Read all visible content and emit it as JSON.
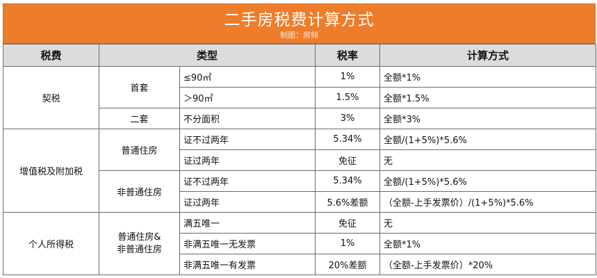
{
  "header": {
    "title": "二手房税费计算方式",
    "subtitle": "制图：房频"
  },
  "table": {
    "columns": [
      "税费",
      "类型",
      "税率",
      "计算方式"
    ],
    "groups": [
      {
        "tax": "契税",
        "subgroups": [
          {
            "type": "首套",
            "rows": [
              {
                "condition": "≤90㎡",
                "rate": "1%",
                "formula": "全额*1%"
              },
              {
                "condition": "＞90㎡",
                "rate": "1.5%",
                "formula": "全额*1.5%"
              }
            ]
          },
          {
            "type": "二套",
            "rows": [
              {
                "condition": "不分面积",
                "rate": "3%",
                "formula": "全额*3%"
              }
            ]
          }
        ]
      },
      {
        "tax": "增值税及附加税",
        "subgroups": [
          {
            "type": "普通住房",
            "rows": [
              {
                "condition": "证不过两年",
                "rate": "5.34%",
                "formula": "全额/(1+5%)*5.6%"
              },
              {
                "condition": "证过两年",
                "rate": "免征",
                "formula": "无"
              }
            ]
          },
          {
            "type": "非普通住房",
            "rows": [
              {
                "condition": "证不过两年",
                "rate": "5.34%",
                "formula": "全额/(1+5%)*5.6%"
              },
              {
                "condition": "证过两年",
                "rate": "5.6%差额",
                "formula": "（全额-上手发票价）/(1+5%)*5.6%"
              }
            ]
          }
        ]
      },
      {
        "tax": "个人所得税",
        "subgroups": [
          {
            "type_line1": "普通住房&",
            "type_line2": "非普通住房",
            "rows": [
              {
                "condition": "满五唯一",
                "rate": "免征",
                "formula": "无"
              },
              {
                "condition": "非满五唯一无发票",
                "rate": "1%",
                "formula": "全额*1%"
              },
              {
                "condition": "非满五唯一有发票",
                "rate": "20%差额",
                "formula": "（全额-上手发票价）*20%"
              }
            ]
          }
        ]
      }
    ]
  },
  "colors": {
    "banner": "#ee7d2b",
    "header_row": "#dcdcdc"
  }
}
